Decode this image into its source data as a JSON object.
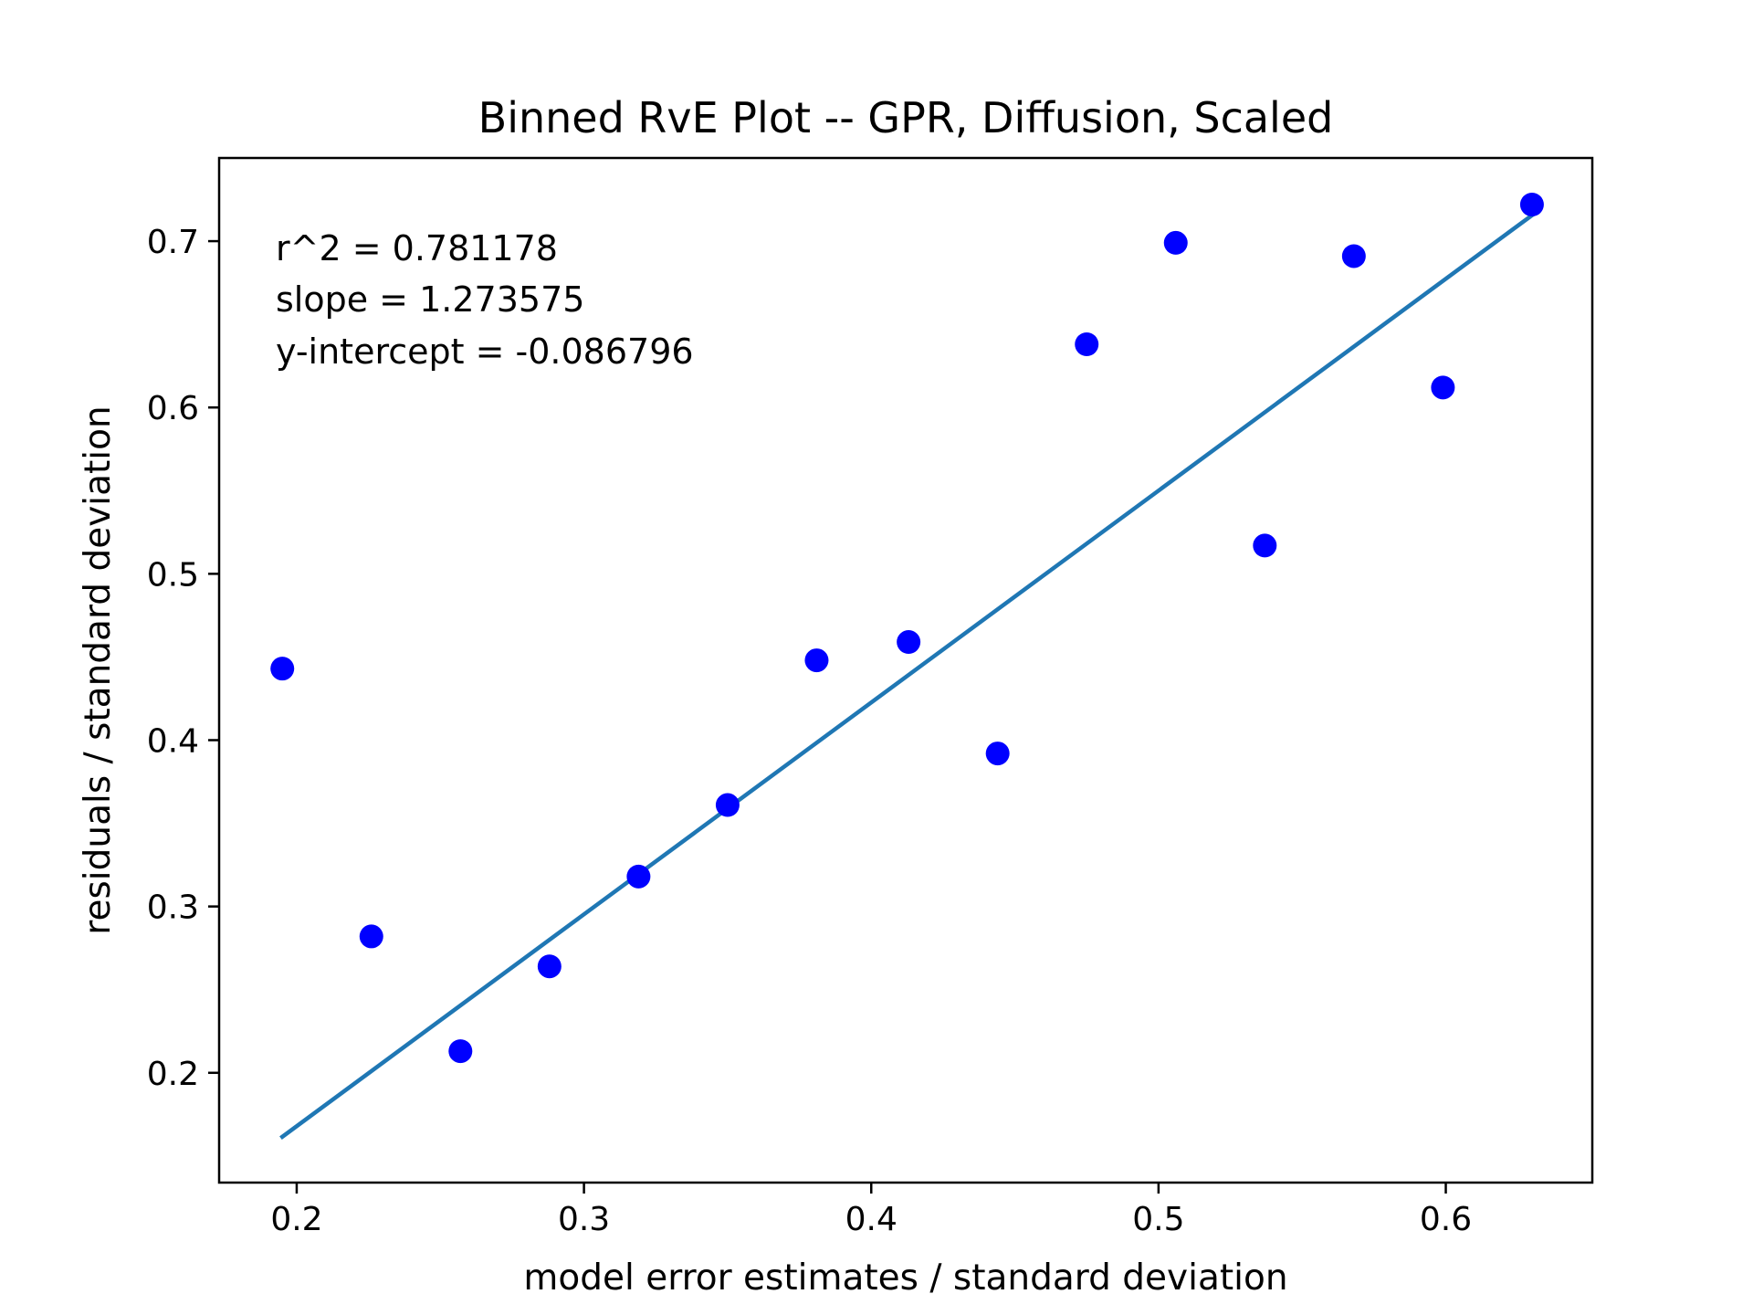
{
  "chart_data": {
    "type": "scatter",
    "title": "Binned RvE Plot -- GPR, Diffusion, Scaled",
    "xlabel": "model error estimates / standard deviation",
    "ylabel": "residuals / standard deviation",
    "xlim": [
      0.173,
      0.651
    ],
    "ylim": [
      0.134,
      0.75
    ],
    "xticks": [
      0.2,
      0.3,
      0.4,
      0.5,
      0.6
    ],
    "xtick_labels": [
      "0.2",
      "0.3",
      "0.4",
      "0.5",
      "0.6"
    ],
    "yticks": [
      0.2,
      0.3,
      0.4,
      0.5,
      0.6,
      0.7
    ],
    "ytick_labels": [
      "0.2",
      "0.3",
      "0.4",
      "0.5",
      "0.6",
      "0.7"
    ],
    "grid": false,
    "annotations": [
      "r^2 = 0.781178",
      "slope = 1.273575",
      "y-intercept = -0.086796"
    ],
    "points": {
      "color": "#0000ff",
      "x": [
        0.195,
        0.226,
        0.257,
        0.288,
        0.319,
        0.35,
        0.381,
        0.413,
        0.444,
        0.475,
        0.506,
        0.537,
        0.568,
        0.599,
        0.63
      ],
      "y": [
        0.443,
        0.282,
        0.213,
        0.264,
        0.318,
        0.361,
        0.448,
        0.459,
        0.392,
        0.638,
        0.699,
        0.517,
        0.691,
        0.612,
        0.722
      ]
    },
    "fit_line": {
      "color": "#1f77b4",
      "slope": 1.273575,
      "intercept": -0.086796,
      "x_range": [
        0.195,
        0.63
      ]
    }
  }
}
